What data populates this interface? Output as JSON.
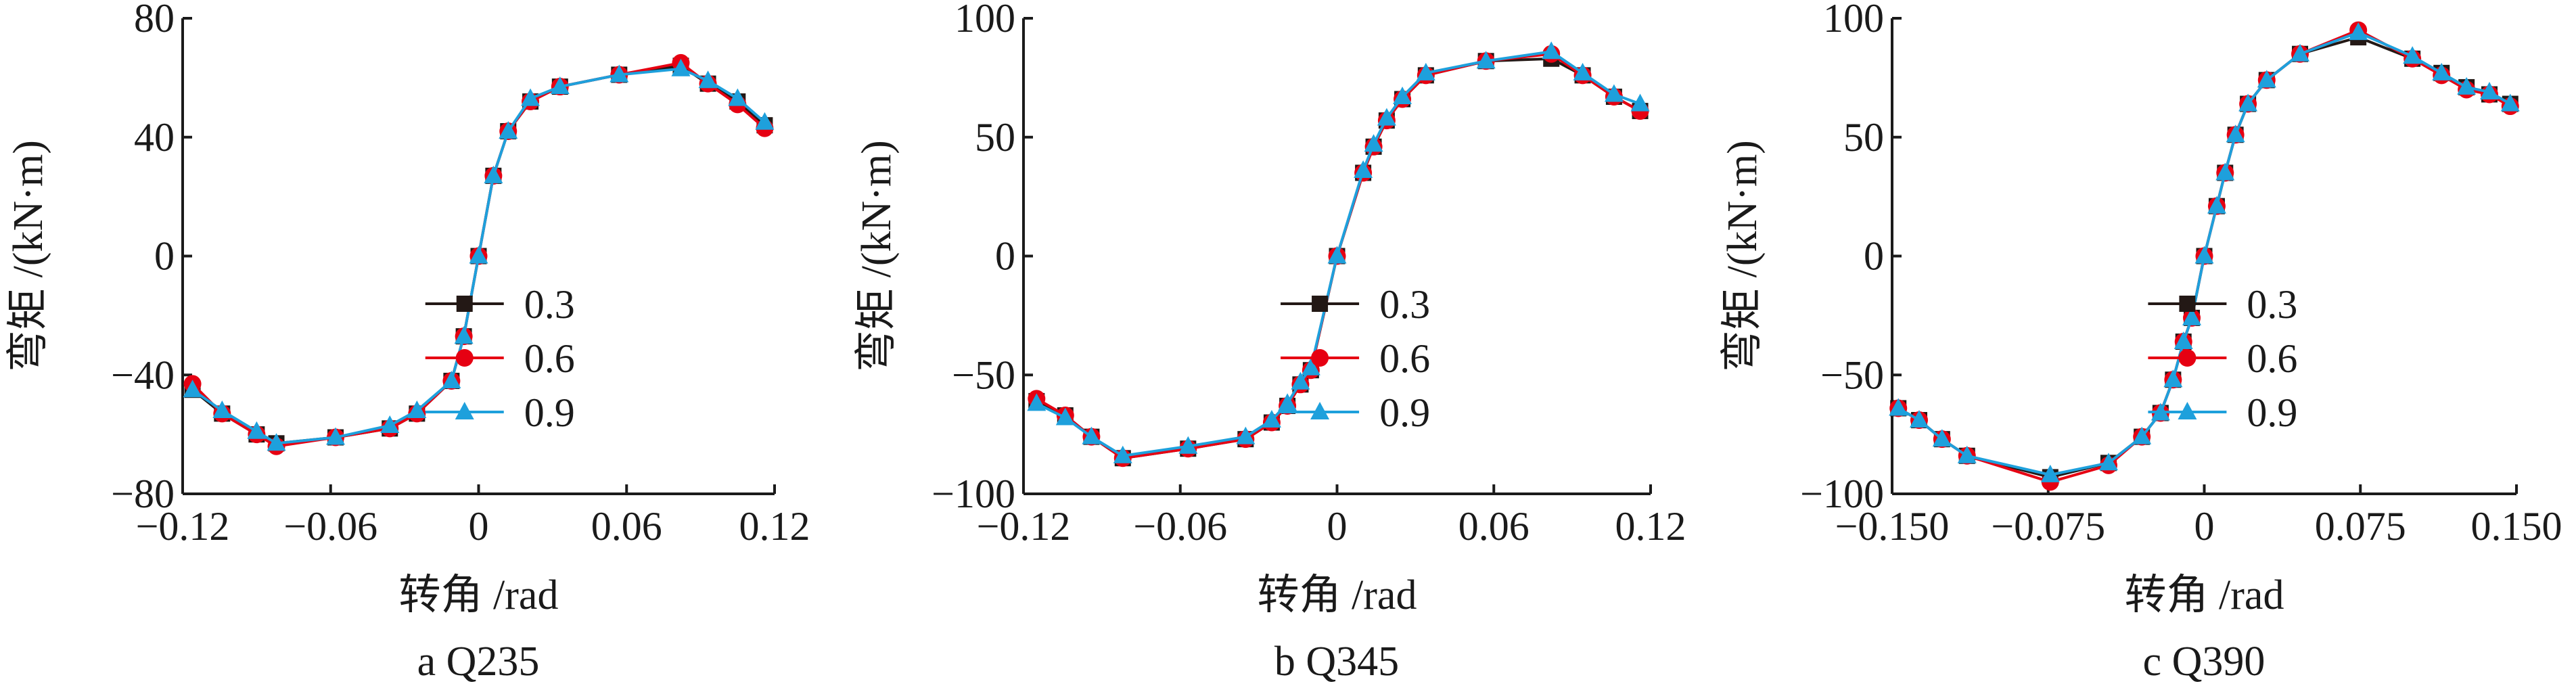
{
  "chart_data": [
    {
      "type": "line",
      "caption": "a  Q235",
      "xlabel": "转角 /rad",
      "ylabel": "弯矩 /(kN·m)",
      "xlim": [
        -0.12,
        0.12
      ],
      "ylim": [
        -80,
        80
      ],
      "xticks": [
        -0.12,
        -0.06,
        0,
        0.06,
        0.12
      ],
      "xtick_labels": [
        "−0.12",
        "−0.06",
        "0",
        "0.06",
        "0.12"
      ],
      "yticks": [
        -80,
        -40,
        0,
        40,
        80
      ],
      "ytick_labels": [
        "−80",
        "−40",
        "0",
        "40",
        "80"
      ],
      "legend_position": "lower-right",
      "series": [
        {
          "name": "0.3",
          "color": "#231815",
          "marker": "square",
          "x": [
            -0.116,
            -0.104,
            -0.09,
            -0.082,
            -0.058,
            -0.036,
            -0.025,
            -0.011,
            -0.006,
            0.0,
            0.006,
            0.012,
            0.021,
            0.033,
            0.057,
            0.082,
            0.093,
            0.105,
            0.116
          ],
          "y": [
            -45,
            -53,
            -60,
            -63,
            -61,
            -58,
            -53,
            -42,
            -27,
            0,
            27,
            42,
            52,
            57,
            61,
            64,
            58,
            52,
            44
          ]
        },
        {
          "name": "0.6",
          "color": "#e60012",
          "marker": "circle",
          "x": [
            -0.116,
            -0.104,
            -0.09,
            -0.082,
            -0.058,
            -0.036,
            -0.025,
            -0.011,
            -0.006,
            0.0,
            0.006,
            0.012,
            0.021,
            0.033,
            0.057,
            0.082,
            0.093,
            0.105,
            0.116
          ],
          "y": [
            -43,
            -53,
            -60,
            -64,
            -61,
            -58,
            -53,
            -42,
            -27,
            0,
            27,
            42,
            52,
            57,
            61,
            65,
            58,
            51,
            43
          ]
        },
        {
          "name": "0.9",
          "color": "#1ea0dc",
          "marker": "triangle",
          "x": [
            -0.116,
            -0.104,
            -0.09,
            -0.082,
            -0.058,
            -0.036,
            -0.025,
            -0.011,
            -0.006,
            0.0,
            0.006,
            0.012,
            0.021,
            0.033,
            0.057,
            0.082,
            0.093,
            0.105,
            0.116
          ],
          "y": [
            -45,
            -52,
            -59,
            -63,
            -61,
            -57,
            -52,
            -42,
            -27,
            0,
            27,
            42,
            53,
            57,
            61,
            63,
            59,
            53,
            45
          ]
        }
      ]
    },
    {
      "type": "line",
      "caption": "b  Q345",
      "xlabel": "转角 /rad",
      "ylabel": "弯矩 /(kN·m)",
      "xlim": [
        -0.12,
        0.12
      ],
      "ylim": [
        -100,
        100
      ],
      "xticks": [
        -0.12,
        -0.06,
        0,
        0.06,
        0.12
      ],
      "xtick_labels": [
        "−0.12",
        "−0.06",
        "0",
        "0.06",
        "0.12"
      ],
      "yticks": [
        -100,
        -50,
        0,
        50,
        100
      ],
      "ytick_labels": [
        "−100",
        "−50",
        "0",
        "50",
        "100"
      ],
      "legend_position": "lower-right",
      "series": [
        {
          "name": "0.3",
          "color": "#231815",
          "marker": "square",
          "x": [
            -0.115,
            -0.104,
            -0.094,
            -0.082,
            -0.057,
            -0.035,
            -0.025,
            -0.019,
            -0.014,
            -0.01,
            0.0,
            0.01,
            0.014,
            0.019,
            0.025,
            0.034,
            0.057,
            0.082,
            0.094,
            0.106,
            0.116
          ],
          "y": [
            -61,
            -67,
            -76,
            -85,
            -81,
            -77,
            -70,
            -63,
            -54,
            -48,
            0,
            35,
            46,
            57,
            66,
            76,
            82,
            83,
            76,
            67,
            61
          ]
        },
        {
          "name": "0.6",
          "color": "#e60012",
          "marker": "circle",
          "x": [
            -0.115,
            -0.104,
            -0.094,
            -0.082,
            -0.057,
            -0.035,
            -0.025,
            -0.019,
            -0.014,
            -0.01,
            0.0,
            0.01,
            0.014,
            0.019,
            0.025,
            0.034,
            0.057,
            0.082,
            0.094,
            0.106,
            0.116
          ],
          "y": [
            -60,
            -67,
            -76,
            -85,
            -81,
            -77,
            -70,
            -63,
            -54,
            -48,
            0,
            35,
            46,
            57,
            66,
            76,
            82,
            85,
            76,
            67,
            61
          ]
        },
        {
          "name": "0.9",
          "color": "#1ea0dc",
          "marker": "triangle",
          "x": [
            -0.115,
            -0.104,
            -0.094,
            -0.082,
            -0.057,
            -0.035,
            -0.025,
            -0.019,
            -0.014,
            -0.01,
            0.0,
            0.01,
            0.014,
            0.019,
            0.025,
            0.034,
            0.057,
            0.082,
            0.094,
            0.106,
            0.116
          ],
          "y": [
            -62,
            -68,
            -76,
            -84,
            -80,
            -76,
            -69,
            -62,
            -53,
            -47,
            0,
            36,
            47,
            58,
            67,
            77,
            82,
            86,
            77,
            68,
            64
          ]
        }
      ]
    },
    {
      "type": "line",
      "caption": "c  Q390",
      "xlabel": "转角 /rad",
      "ylabel": "弯矩 /(kN·m)",
      "xlim": [
        -0.15,
        0.15
      ],
      "ylim": [
        -100,
        100
      ],
      "xticks": [
        -0.15,
        -0.075,
        0,
        0.075,
        0.15
      ],
      "xtick_labels": [
        "−0.150",
        "−0.075",
        "0",
        "0.075",
        "0.150"
      ],
      "yticks": [
        -100,
        -50,
        0,
        50,
        100
      ],
      "ytick_labels": [
        "−100",
        "−50",
        "0",
        "50",
        "100"
      ],
      "legend_position": "lower-right",
      "series": [
        {
          "name": "0.3",
          "color": "#231815",
          "marker": "square",
          "x": [
            -0.147,
            -0.137,
            -0.126,
            -0.114,
            -0.074,
            -0.046,
            -0.03,
            -0.021,
            -0.015,
            -0.01,
            -0.006,
            0.0,
            0.006,
            0.01,
            0.015,
            0.021,
            0.03,
            0.046,
            0.074,
            0.1,
            0.114,
            0.126,
            0.137,
            0.147
          ],
          "y": [
            -64,
            -69,
            -77,
            -84,
            -93,
            -87,
            -76,
            -66,
            -52,
            -36,
            -26,
            0,
            21,
            35,
            51,
            64,
            74,
            85,
            92,
            83,
            77,
            71,
            68,
            64
          ]
        },
        {
          "name": "0.6",
          "color": "#e60012",
          "marker": "circle",
          "x": [
            -0.147,
            -0.137,
            -0.126,
            -0.114,
            -0.074,
            -0.046,
            -0.03,
            -0.021,
            -0.015,
            -0.01,
            -0.006,
            0.0,
            0.006,
            0.01,
            0.015,
            0.021,
            0.03,
            0.046,
            0.074,
            0.1,
            0.114,
            0.126,
            0.137,
            0.147
          ],
          "y": [
            -64,
            -69,
            -77,
            -84,
            -95,
            -88,
            -76,
            -66,
            -52,
            -36,
            -26,
            0,
            21,
            35,
            51,
            64,
            74,
            85,
            95,
            83,
            76,
            70,
            68,
            63
          ]
        },
        {
          "name": "0.9",
          "color": "#1ea0dc",
          "marker": "triangle",
          "x": [
            -0.147,
            -0.137,
            -0.126,
            -0.114,
            -0.074,
            -0.046,
            -0.03,
            -0.021,
            -0.015,
            -0.01,
            -0.006,
            0.0,
            0.006,
            0.01,
            0.015,
            0.021,
            0.03,
            0.046,
            0.074,
            0.1,
            0.114,
            0.126,
            0.137,
            0.147
          ],
          "y": [
            -64,
            -69,
            -77,
            -84,
            -92,
            -87,
            -76,
            -66,
            -52,
            -36,
            -26,
            0,
            21,
            35,
            51,
            64,
            74,
            85,
            94,
            84,
            77,
            71,
            69,
            64
          ]
        }
      ]
    }
  ]
}
